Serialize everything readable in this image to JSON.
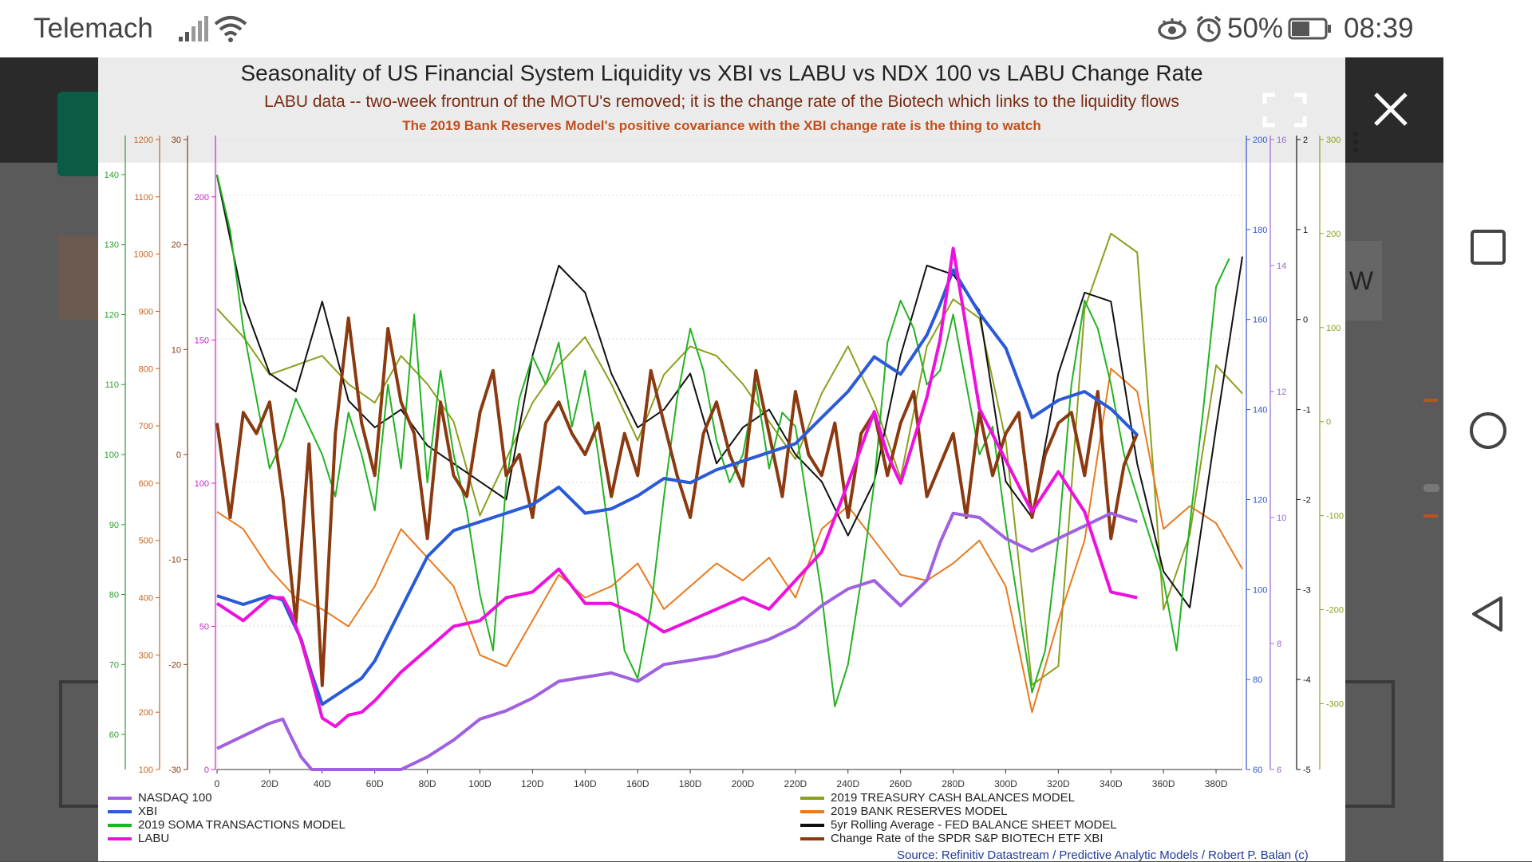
{
  "status_bar": {
    "carrier": "Telemach",
    "battery_percent": "50%",
    "time": "08:39",
    "icons": [
      "signal-icon",
      "wifi-icon",
      "eye-icon",
      "alarm-icon",
      "battery-icon"
    ]
  },
  "nav_bar": {
    "icons": [
      "recent-apps-icon",
      "home-icon",
      "back-icon"
    ]
  },
  "background_page": {
    "partial_text": "W"
  },
  "chart_data": {
    "type": "line",
    "title": "Seasonality of US Financial System Liquidity vs XBI vs LABU vs NDX 100 vs LABU Change Rate",
    "subtitle": "LABU data -- two-week frontrun of the MOTU's removed; it is the change rate of the Biotech which links to the liquidity flows",
    "note": "The 2019 Bank Reserves Model's positive covariance with the XBI change rate is the thing to watch",
    "source": "Source: Refinitiv Datastream / Predictive Analytic Models / Robert P. Balan (c)",
    "x_ticks": [
      "0",
      "20D",
      "40D",
      "60D",
      "80D",
      "100D",
      "120D",
      "140D",
      "160D",
      "180D",
      "200D",
      "220D",
      "240D",
      "260D",
      "280D",
      "300D",
      "320D",
      "340D",
      "360D",
      "380D"
    ],
    "xlim": [
      0,
      390
    ],
    "left_axes": [
      {
        "color": "#2a9e2a",
        "ticks": [
          "140",
          "130",
          "120",
          "110",
          "100",
          "90",
          "80",
          "70",
          "60"
        ],
        "range": [
          55,
          145
        ]
      },
      {
        "color": "#c8641e",
        "ticks": [
          "1200",
          "1100",
          "1000",
          "900",
          "800",
          "700",
          "600",
          "500",
          "400",
          "300",
          "200",
          "100"
        ],
        "range": [
          100,
          1200
        ]
      },
      {
        "color": "#8b3a10",
        "ticks": [
          "30",
          "20",
          "10",
          "0",
          "-10",
          "-20",
          "-30"
        ],
        "range": [
          -30,
          30
        ]
      },
      {
        "color": "#cc22cc",
        "ticks": [
          "200",
          "150",
          "100",
          "50",
          "0"
        ],
        "range": [
          0,
          220
        ]
      }
    ],
    "right_axes": [
      {
        "color": "#3355cc",
        "ticks": [
          "200",
          "180",
          "160",
          "140",
          "120",
          "100",
          "80",
          "60"
        ],
        "range": [
          60,
          200
        ]
      },
      {
        "color": "#9966cc",
        "ticks": [
          "16",
          "14",
          "12",
          "10",
          "8",
          "6"
        ],
        "range": [
          6,
          16
        ]
      },
      {
        "color": "#111111",
        "ticks": [
          "2",
          "1",
          "0",
          "-1",
          "-2",
          "-3",
          "-4",
          "-5"
        ],
        "range": [
          -5,
          2
        ]
      },
      {
        "color": "#8aa01e",
        "ticks": [
          "300",
          "200",
          "100",
          "0",
          "-100",
          "-200",
          "-300"
        ],
        "range": [
          -370,
          300
        ]
      }
    ],
    "series": [
      {
        "name": "NASDAQ 100",
        "color": "#a060e0",
        "width": 4,
        "axis": "NDX",
        "x": [
          0,
          10,
          20,
          25,
          28,
          32,
          36,
          40,
          45,
          50,
          55,
          60,
          70,
          80,
          90,
          100,
          110,
          120,
          130,
          140,
          150,
          160,
          170,
          180,
          190,
          200,
          210,
          220,
          230,
          240,
          250,
          255,
          260,
          270,
          275,
          280,
          290,
          300,
          310,
          320,
          330,
          340,
          350
        ],
        "y": [
          70,
          73,
          76,
          77,
          73,
          68,
          60,
          53,
          55,
          57,
          58,
          60,
          64,
          68,
          72,
          77,
          79,
          82,
          86,
          87,
          88,
          86,
          90,
          91,
          92,
          94,
          96,
          99,
          104,
          108,
          110,
          107,
          104,
          110,
          119,
          126,
          125,
          120,
          117,
          120,
          123,
          126,
          124
        ]
      },
      {
        "name": "XBI",
        "color": "#2a5ad8",
        "width": 4,
        "axis": "XBI",
        "x": [
          0,
          10,
          20,
          25,
          28,
          32,
          36,
          40,
          45,
          50,
          55,
          60,
          70,
          80,
          90,
          100,
          110,
          120,
          130,
          140,
          150,
          160,
          170,
          180,
          190,
          200,
          210,
          220,
          230,
          240,
          250,
          255,
          260,
          270,
          275,
          280,
          290,
          300,
          310,
          320,
          330,
          340,
          350
        ],
        "y": [
          95,
          93,
          95,
          94,
          90,
          85,
          77,
          70,
          72,
          74,
          76,
          80,
          92,
          104,
          110,
          112,
          114,
          116,
          120,
          114,
          115,
          118,
          122,
          121,
          124,
          126,
          128,
          130,
          136,
          142,
          150,
          148,
          146,
          155,
          162,
          170,
          160,
          152,
          136,
          140,
          142,
          138,
          132
        ]
      },
      {
        "name": "2019 SOMA TRANSACTIONS MODEL",
        "color": "#22b322",
        "width": 2,
        "axis": "SOMA",
        "x": [
          0,
          5,
          10,
          15,
          20,
          25,
          30,
          35,
          40,
          45,
          50,
          55,
          60,
          65,
          70,
          75,
          80,
          85,
          90,
          95,
          100,
          105,
          110,
          115,
          120,
          125,
          130,
          135,
          140,
          145,
          150,
          155,
          160,
          165,
          170,
          175,
          180,
          185,
          190,
          195,
          200,
          205,
          210,
          215,
          220,
          225,
          230,
          235,
          240,
          245,
          250,
          255,
          260,
          265,
          270,
          275,
          280,
          285,
          290,
          295,
          300,
          305,
          310,
          315,
          320,
          325,
          330,
          335,
          340,
          345,
          350,
          355,
          360,
          365,
          370,
          375,
          380,
          385
        ],
        "y": [
          140,
          132,
          118,
          108,
          98,
          102,
          108,
          104,
          100,
          94,
          106,
          100,
          92,
          110,
          98,
          120,
          96,
          112,
          100,
          92,
          80,
          72,
          96,
          108,
          114,
          110,
          116,
          104,
          112,
          100,
          86,
          72,
          68,
          78,
          94,
          108,
          118,
          112,
          102,
          96,
          100,
          110,
          98,
          106,
          104,
          92,
          80,
          64,
          70,
          82,
          96,
          116,
          122,
          118,
          110,
          112,
          120,
          110,
          100,
          104,
          90,
          78,
          66,
          72,
          88,
          110,
          122,
          118,
          110,
          100,
          94,
          88,
          82,
          72,
          90,
          106,
          124,
          128
        ]
      },
      {
        "name": "LABU",
        "color": "#ee10dd",
        "width": 4,
        "axis": "LABU",
        "x": [
          0,
          10,
          20,
          25,
          28,
          32,
          36,
          40,
          45,
          50,
          55,
          60,
          70,
          80,
          90,
          100,
          110,
          120,
          130,
          140,
          150,
          160,
          170,
          180,
          190,
          200,
          210,
          220,
          230,
          240,
          250,
          255,
          260,
          270,
          275,
          280,
          290,
          300,
          310,
          320,
          330,
          340,
          350
        ],
        "y": [
          58,
          52,
          60,
          60,
          55,
          45,
          32,
          18,
          15,
          19,
          20,
          24,
          34,
          42,
          50,
          52,
          60,
          62,
          70,
          58,
          58,
          54,
          48,
          52,
          56,
          60,
          56,
          66,
          76,
          100,
          125,
          110,
          100,
          130,
          150,
          182,
          126,
          108,
          90,
          104,
          90,
          62,
          60
        ]
      },
      {
        "name": "2019 TREASURY CASH BALANCES MODEL",
        "color": "#8aa01e",
        "width": 2,
        "axis": "TREAS",
        "x": [
          0,
          10,
          20,
          30,
          40,
          50,
          60,
          70,
          80,
          90,
          100,
          110,
          120,
          130,
          140,
          150,
          160,
          170,
          180,
          190,
          200,
          210,
          220,
          230,
          240,
          250,
          260,
          270,
          280,
          290,
          300,
          310,
          320,
          330,
          340,
          350,
          360,
          370,
          380,
          390
        ],
        "y": [
          120,
          90,
          50,
          60,
          70,
          40,
          20,
          70,
          40,
          0,
          -100,
          -40,
          20,
          60,
          90,
          40,
          -20,
          50,
          80,
          70,
          40,
          0,
          -40,
          30,
          80,
          20,
          -60,
          80,
          130,
          110,
          -20,
          -280,
          -260,
          120,
          200,
          180,
          -200,
          -120,
          60,
          30
        ]
      },
      {
        "name": "2019 BANK RESERVES MODEL",
        "color": "#e87a1e",
        "width": 2,
        "axis": "RES",
        "x": [
          0,
          10,
          20,
          30,
          40,
          50,
          60,
          70,
          80,
          90,
          100,
          110,
          120,
          130,
          140,
          150,
          160,
          170,
          180,
          190,
          200,
          210,
          220,
          230,
          240,
          250,
          260,
          270,
          280,
          290,
          300,
          310,
          320,
          330,
          340,
          350,
          360,
          370,
          380,
          390
        ],
        "y": [
          550,
          520,
          450,
          400,
          380,
          350,
          420,
          520,
          470,
          420,
          300,
          280,
          360,
          440,
          400,
          420,
          460,
          380,
          420,
          460,
          430,
          470,
          400,
          520,
          560,
          500,
          440,
          430,
          460,
          500,
          420,
          200,
          360,
          500,
          800,
          760,
          520,
          560,
          530,
          450
        ]
      },
      {
        "name": "5yr Rolling Average - FED BALANCE SHEET MODEL",
        "color": "#111111",
        "width": 2,
        "axis": "FED",
        "x": [
          0,
          10,
          20,
          30,
          40,
          50,
          60,
          70,
          80,
          90,
          100,
          110,
          120,
          130,
          140,
          150,
          160,
          170,
          180,
          190,
          200,
          210,
          220,
          230,
          240,
          250,
          260,
          270,
          280,
          290,
          300,
          310,
          320,
          330,
          340,
          350,
          360,
          370,
          380,
          390
        ],
        "y": [
          1.6,
          0.2,
          -0.6,
          -0.8,
          0.2,
          -0.9,
          -1.2,
          -1.0,
          -1.4,
          -1.6,
          -1.8,
          -2.0,
          -0.4,
          0.6,
          0.3,
          -0.6,
          -1.2,
          -1.0,
          -0.6,
          -1.6,
          -1.2,
          -1.0,
          -1.5,
          -1.8,
          -2.4,
          -1.8,
          -0.4,
          0.6,
          0.5,
          0.1,
          -1.8,
          -2.2,
          -0.6,
          0.3,
          0.2,
          -1.6,
          -2.8,
          -3.2,
          -1.2,
          0.7
        ]
      },
      {
        "name": "Change Rate of the SPDR S&P BIOTECH ETF XBI",
        "color": "#8b3a10",
        "width": 4,
        "axis": "CHG",
        "x": [
          0,
          5,
          10,
          15,
          20,
          25,
          30,
          35,
          40,
          45,
          50,
          55,
          60,
          65,
          70,
          75,
          80,
          85,
          90,
          95,
          100,
          105,
          110,
          115,
          120,
          125,
          130,
          135,
          140,
          145,
          150,
          155,
          160,
          165,
          170,
          175,
          180,
          185,
          190,
          195,
          200,
          205,
          210,
          215,
          220,
          225,
          230,
          235,
          240,
          245,
          250,
          255,
          260,
          265,
          270,
          275,
          280,
          285,
          290,
          295,
          300,
          305,
          310,
          315,
          320,
          325,
          330,
          335,
          340,
          345,
          350
        ],
        "y": [
          3,
          -6,
          4,
          2,
          5,
          -4,
          -16,
          1,
          -22,
          2,
          13,
          3,
          -2,
          12,
          5,
          2,
          -8,
          5,
          -2,
          -4,
          4,
          8,
          -2,
          0,
          -6,
          3,
          5,
          2,
          0,
          3,
          -4,
          2,
          -2,
          8,
          3,
          -2,
          -6,
          2,
          5,
          0,
          -3,
          8,
          2,
          -4,
          6,
          0,
          -2,
          3,
          -6,
          2,
          4,
          -2,
          3,
          6,
          -4,
          -1,
          2,
          -6,
          4,
          -2,
          2,
          4,
          -6,
          0,
          3,
          4,
          -2,
          6,
          -8,
          -1,
          2
        ]
      }
    ]
  },
  "legend": [
    {
      "label": "NASDAQ 100",
      "color": "#a060e0"
    },
    {
      "label": "XBI",
      "color": "#2a5ad8"
    },
    {
      "label": "2019 SOMA TRANSACTIONS MODEL",
      "color": "#22b322"
    },
    {
      "label": "LABU",
      "color": "#ee10dd"
    },
    {
      "label": "2019 TREASURY CASH BALANCES MODEL",
      "color": "#8aa01e"
    },
    {
      "label": "2019 BANK RESERVES MODEL",
      "color": "#e87a1e"
    },
    {
      "label": "5yr Rolling Average - FED BALANCE SHEET MODEL",
      "color": "#111111"
    },
    {
      "label": "Change Rate of the SPDR S&P BIOTECH ETF XBI",
      "color": "#8b3a10"
    }
  ]
}
